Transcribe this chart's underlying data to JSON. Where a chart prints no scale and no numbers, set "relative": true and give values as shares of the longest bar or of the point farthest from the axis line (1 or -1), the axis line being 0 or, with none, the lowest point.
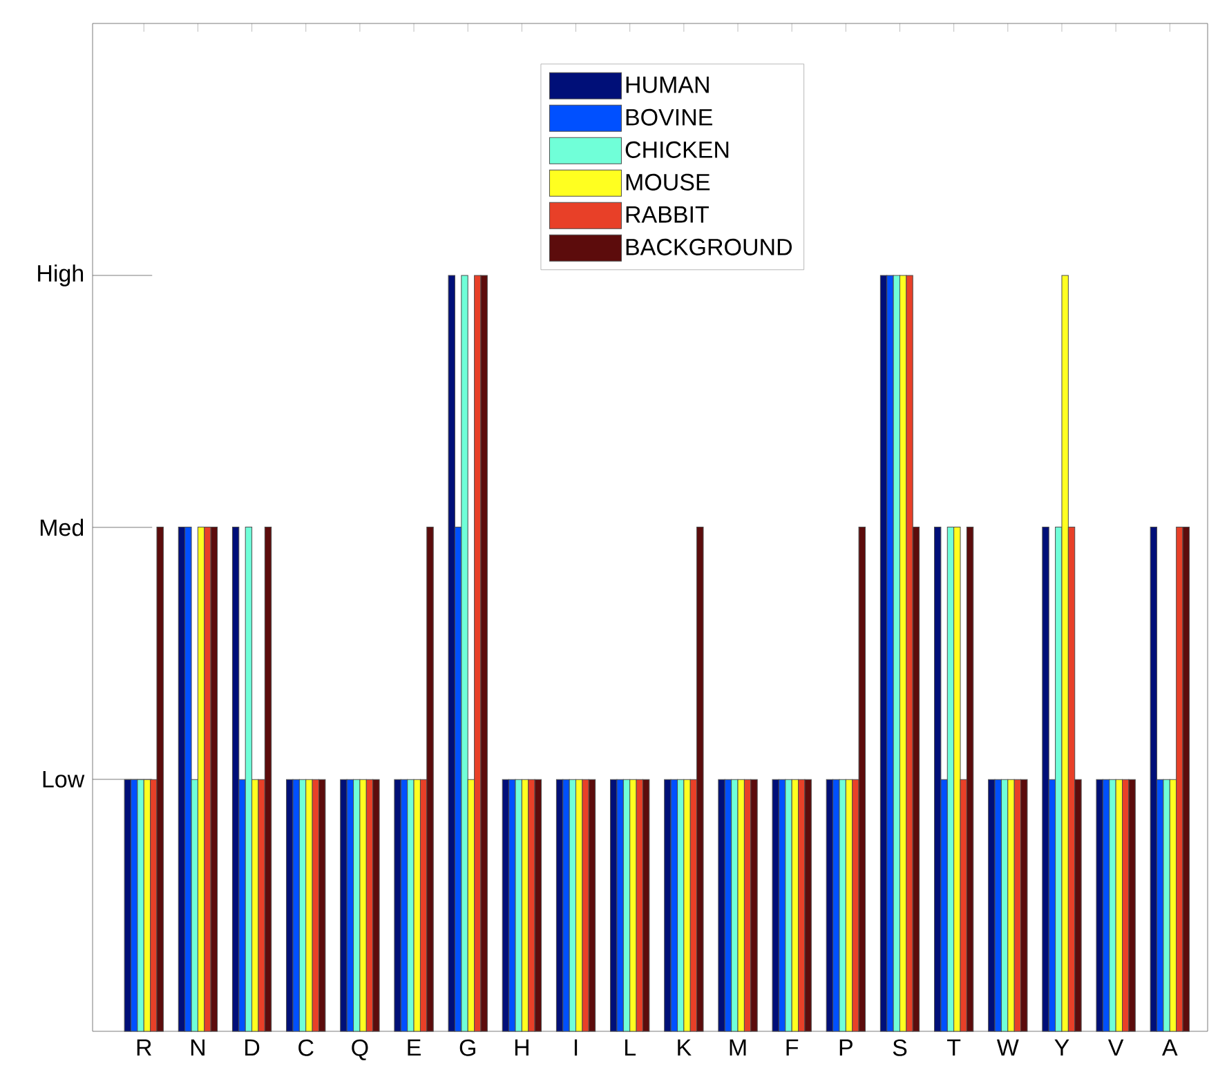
{
  "chart_data": {
    "type": "bar",
    "categories": [
      "R",
      "N",
      "D",
      "C",
      "Q",
      "E",
      "G",
      "H",
      "I",
      "L",
      "K",
      "M",
      "F",
      "P",
      "S",
      "T",
      "W",
      "Y",
      "V",
      "A"
    ],
    "relative": true,
    "annotations": [
      "Low",
      "Med",
      "High"
    ],
    "legend": "top",
    "series": [
      {
        "name": "HUMAN",
        "color": "#000f78",
        "values": [
          0.333,
          0.667,
          0.667,
          0.333,
          0.333,
          0.333,
          1,
          0.333,
          0.333,
          0.333,
          0.333,
          0.333,
          0.333,
          0.333,
          1,
          0.667,
          0.333,
          0.667,
          0.333,
          0.667
        ]
      },
      {
        "name": "BOVINE",
        "color": "#0050ff",
        "values": [
          0.333,
          0.667,
          0.333,
          0.333,
          0.333,
          0.333,
          0.667,
          0.333,
          0.333,
          0.333,
          0.333,
          0.333,
          0.333,
          0.333,
          1,
          0.333,
          0.333,
          0.333,
          0.333,
          0.333
        ]
      },
      {
        "name": "CHICKEN",
        "color": "#70ffd8",
        "values": [
          0.333,
          0.333,
          0.667,
          0.333,
          0.333,
          0.333,
          1,
          0.333,
          0.333,
          0.333,
          0.333,
          0.333,
          0.333,
          0.333,
          1,
          0.667,
          0.333,
          0.667,
          0.333,
          0.333
        ]
      },
      {
        "name": "MOUSE",
        "color": "#ffff20",
        "values": [
          0.333,
          0.667,
          0.333,
          0.333,
          0.333,
          0.333,
          0.333,
          0.333,
          0.333,
          0.333,
          0.333,
          0.333,
          0.333,
          0.333,
          1,
          0.667,
          0.333,
          1,
          0.333,
          0.333
        ]
      },
      {
        "name": "RABBIT",
        "color": "#e84028",
        "values": [
          0.333,
          0.667,
          0.333,
          0.333,
          0.333,
          0.333,
          1,
          0.333,
          0.333,
          0.333,
          0.333,
          0.333,
          0.333,
          0.333,
          1,
          0.333,
          0.333,
          0.667,
          0.333,
          0.667
        ]
      },
      {
        "name": "BACKGROUND",
        "color": "#5c0c0c",
        "values": [
          0.667,
          0.667,
          0.667,
          0.333,
          0.333,
          0.667,
          1,
          0.333,
          0.333,
          0.333,
          0.667,
          0.333,
          0.333,
          0.667,
          0.667,
          0.667,
          0.333,
          0.333,
          0.333,
          0.667
        ]
      }
    ]
  }
}
